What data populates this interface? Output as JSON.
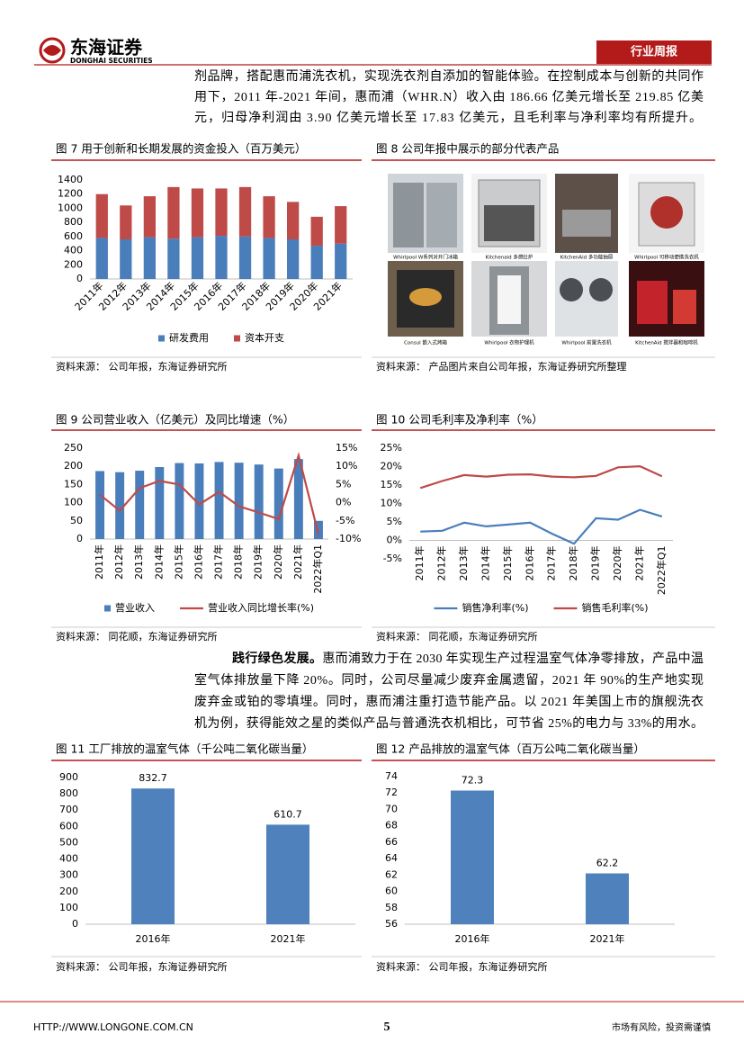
{
  "header": {
    "logo_cn": "东海证券",
    "logo_en": "DONGHAI SECURITIES",
    "tag": "行业周报"
  },
  "paragraphs": [
    {
      "lines": [
        "剂品牌，搭配惠而浦洗衣机，实现洗衣剂自添加的智能体验。在控制成本与创新的共同作",
        "用下，2011 年-2021 年间，惠而浦（WHR.N）收入由 186.66 亿美元增长至 219.85 亿美",
        "元，归母净利润由 3.90 亿美元增长至 17.83 亿美元，且毛利率与净利率均有所提升。"
      ]
    },
    {
      "lead": "践行绿色发展。",
      "lines": [
        "惠而浦致力于在 2030 年实现生产过程温室气体净零排放，产品中温",
        "室气体排放量下降 20%。同时，公司尽量减少废弃金属遗留，2021 年 90%的生产地实现",
        "废弃金或铂的零填埋。同时，惠而浦注重打造节能产品。以 2021 年美国上市的旗舰洗衣",
        "机为例，获得能效之星的类似产品与普通洗衣机相比，可节省 25%的电力与 33%的用水。"
      ]
    }
  ],
  "figure8": {
    "title": "图 8   公司年报中展示的部分代表产品",
    "products": [
      "Whirlpool W系列对开门冰箱",
      "Kitchenaid 多燃灶炉",
      "KitchenAid 多功能抽屉",
      "Whirlpool 可移动便携洗衣机",
      "Consul 嵌入式烤箱",
      "Whirlpool 衣物护理机",
      "Whirlpool 前置洗衣机",
      "KitchenAid 搅拌器和咖啡机"
    ],
    "source": "资料来源：  产品图片来自公司年报，东海证券研究所整理"
  },
  "chart_data": [
    {
      "type": "bar",
      "title": "图 7   用于创新和长期发展的资金投入（百万美元）",
      "stacked": true,
      "categories": [
        "2011年",
        "2012年",
        "2013年",
        "2014年",
        "2015年",
        "2016年",
        "2017年",
        "2018年",
        "2019年",
        "2020年",
        "2021年"
      ],
      "series": [
        {
          "name": "研发费用",
          "color": "#4a7ebb",
          "values": [
            580,
            560,
            590,
            570,
            590,
            610,
            600,
            580,
            560,
            470,
            500
          ]
        },
        {
          "name": "资本开支",
          "color": "#be4b48",
          "values": [
            620,
            480,
            580,
            730,
            690,
            670,
            700,
            590,
            530,
            410,
            530
          ]
        }
      ],
      "ylim": [
        0,
        1400
      ],
      "yticks": [
        0,
        200,
        400,
        600,
        800,
        1000,
        1200,
        1400
      ],
      "x_label_rotation": -45,
      "legend": "bottom",
      "source": "资料来源：  公司年报，东海证券研究所"
    },
    {
      "type": "bar",
      "title": "图 9   公司营业收入（亿美元）及同比增速（%）",
      "categories": [
        "2011年",
        "2012年",
        "2013年",
        "2014年",
        "2015年",
        "2016年",
        "2017年",
        "2018年",
        "2019年",
        "2020年",
        "2021年",
        "2022年Q1"
      ],
      "series": [
        {
          "name": "营业收入",
          "color": "#4a7ebb",
          "values": [
            187,
            184,
            188,
            198,
            209,
            208,
            212,
            210,
            205,
            194,
            220,
            50
          ]
        },
        {
          "name": "营业收入同比增长率(%)",
          "type": "line",
          "axis": "y2",
          "color": "#be4b48",
          "values": [
            2.2,
            -2.2,
            4,
            6,
            5,
            -0.5,
            3,
            -1,
            -2.7,
            -4.5,
            13,
            -8.7
          ]
        }
      ],
      "ylim": [
        0,
        250
      ],
      "yticks": [
        0,
        50,
        100,
        150,
        200,
        250
      ],
      "y2lim": [
        -10,
        15
      ],
      "y2ticks": [
        {
          "value": -10,
          "label": "-10%"
        },
        {
          "value": -5,
          "label": "-5%"
        },
        {
          "value": 0,
          "label": "0%"
        },
        {
          "value": 5,
          "label": "5%"
        },
        {
          "value": 10,
          "label": "10%"
        },
        {
          "value": 15,
          "label": "15%"
        }
      ],
      "x_label_rotation": -90,
      "legend": "bottom",
      "source": "资料来源：  同花顺，东海证券研究所"
    },
    {
      "type": "line",
      "title": "图 10   公司毛利率及净利率（%）",
      "categories": [
        "2011年",
        "2012年",
        "2013年",
        "2014年",
        "2015年",
        "2016年",
        "2017年",
        "2018年",
        "2019年",
        "2020年",
        "2021年",
        "2022年Q1"
      ],
      "series": [
        {
          "name": "销售净利率(%)",
          "color": "#4a7ebb",
          "values": [
            2.4,
            2.6,
            4.8,
            3.8,
            4.3,
            4.8,
            1.8,
            -0.9,
            6.0,
            5.6,
            8.3,
            6.5
          ]
        },
        {
          "name": "销售毛利率(%)",
          "color": "#be4b48",
          "values": [
            14.2,
            16.1,
            17.7,
            17.3,
            17.8,
            17.9,
            17.3,
            17.1,
            17.5,
            19.8,
            20.1,
            17.4
          ]
        }
      ],
      "ylim": [
        -5,
        25
      ],
      "yticks": [
        {
          "value": -5,
          "label": "-5%"
        },
        {
          "value": 0,
          "label": "0%"
        },
        {
          "value": 5,
          "label": "5%"
        },
        {
          "value": 10,
          "label": "10%"
        },
        {
          "value": 15,
          "label": "15%"
        },
        {
          "value": 20,
          "label": "20%"
        },
        {
          "value": 25,
          "label": "25%"
        }
      ],
      "x_label_rotation": -90,
      "legend": "bottom",
      "source": "资料来源：  同花顺，东海证券研究所"
    },
    {
      "type": "bar",
      "title": "图 11   工厂排放的温室气体（千公吨二氧化碳当量）",
      "categories": [
        "2016年",
        "2021年"
      ],
      "values": [
        832.7,
        610.7
      ],
      "color": "#4f81bd",
      "ylim": [
        0,
        900
      ],
      "yticks": [
        0,
        100,
        200,
        300,
        400,
        500,
        600,
        700,
        800,
        900
      ],
      "data_labels": true,
      "source": "资料来源：  公司年报，东海证券研究所"
    },
    {
      "type": "bar",
      "title": "图 12   产品排放的温室气体（百万公吨二氧化碳当量）",
      "categories": [
        "2016年",
        "2021年"
      ],
      "values": [
        72.3,
        62.2
      ],
      "color": "#4f81bd",
      "ylim": [
        56,
        74
      ],
      "yticks": [
        56,
        58,
        60,
        62,
        64,
        66,
        68,
        70,
        72,
        74
      ],
      "data_labels": true,
      "source": "资料来源：  公司年报，东海证券研究所"
    }
  ],
  "footer": {
    "url": "HTTP://WWW.LONGONE.COM.CN",
    "page": "5",
    "disclaimer": "市场有风险，投资需谨慎"
  }
}
